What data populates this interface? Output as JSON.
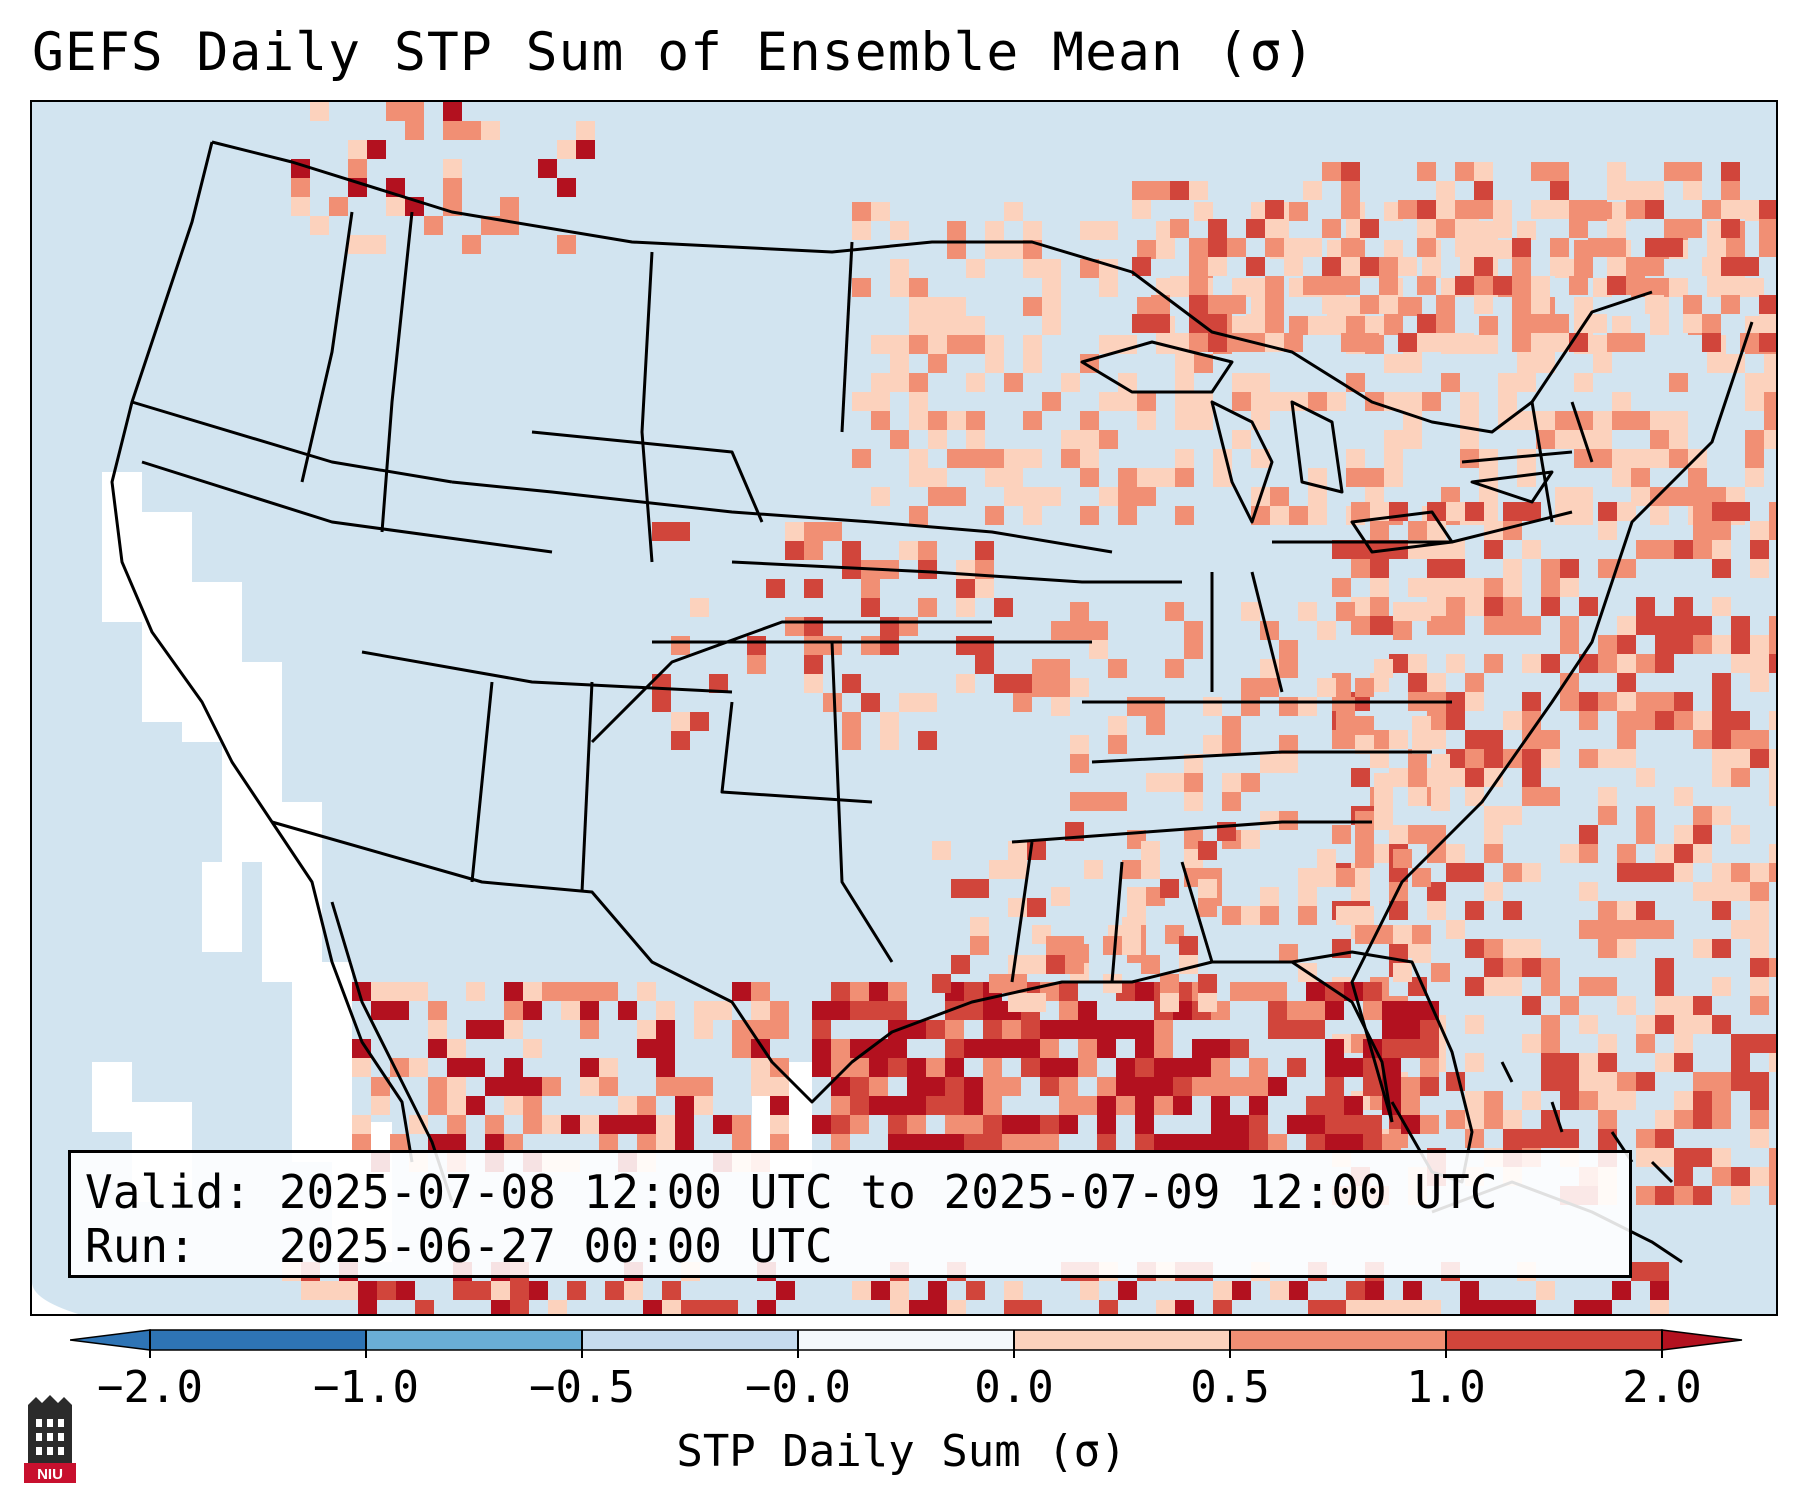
{
  "title": "GEFS Daily STP Sum of Ensemble Mean (σ)",
  "info": {
    "valid": "Valid: 2025-07-08 12:00 UTC to 2025-07-09 12:00 UTC",
    "run": "Run:   2025-06-27 00:00 UTC"
  },
  "colorbar": {
    "label": "STP Daily Sum (σ)",
    "ticks": [
      "−2.0",
      "−1.0",
      "−0.5",
      "−0.0",
      "0.0",
      "0.5",
      "1.0",
      "2.0"
    ],
    "colors": [
      "#2e74b5",
      "#6aaed6",
      "#c6dbef",
      "#f4f8fb",
      "#fcd2bd",
      "#f18f74",
      "#d1453b",
      "#b3111f"
    ]
  },
  "map_colors": {
    "ocean": "#d2e4f0",
    "land": "#d2e4f0",
    "border": "#000000",
    "light_red": "#fcd2bd",
    "medium_red": "#f18f74",
    "dark_red": "#d1453b",
    "deep_red": "#b3111f"
  },
  "logo": {
    "text": "NIU",
    "color": "#c8102e"
  }
}
